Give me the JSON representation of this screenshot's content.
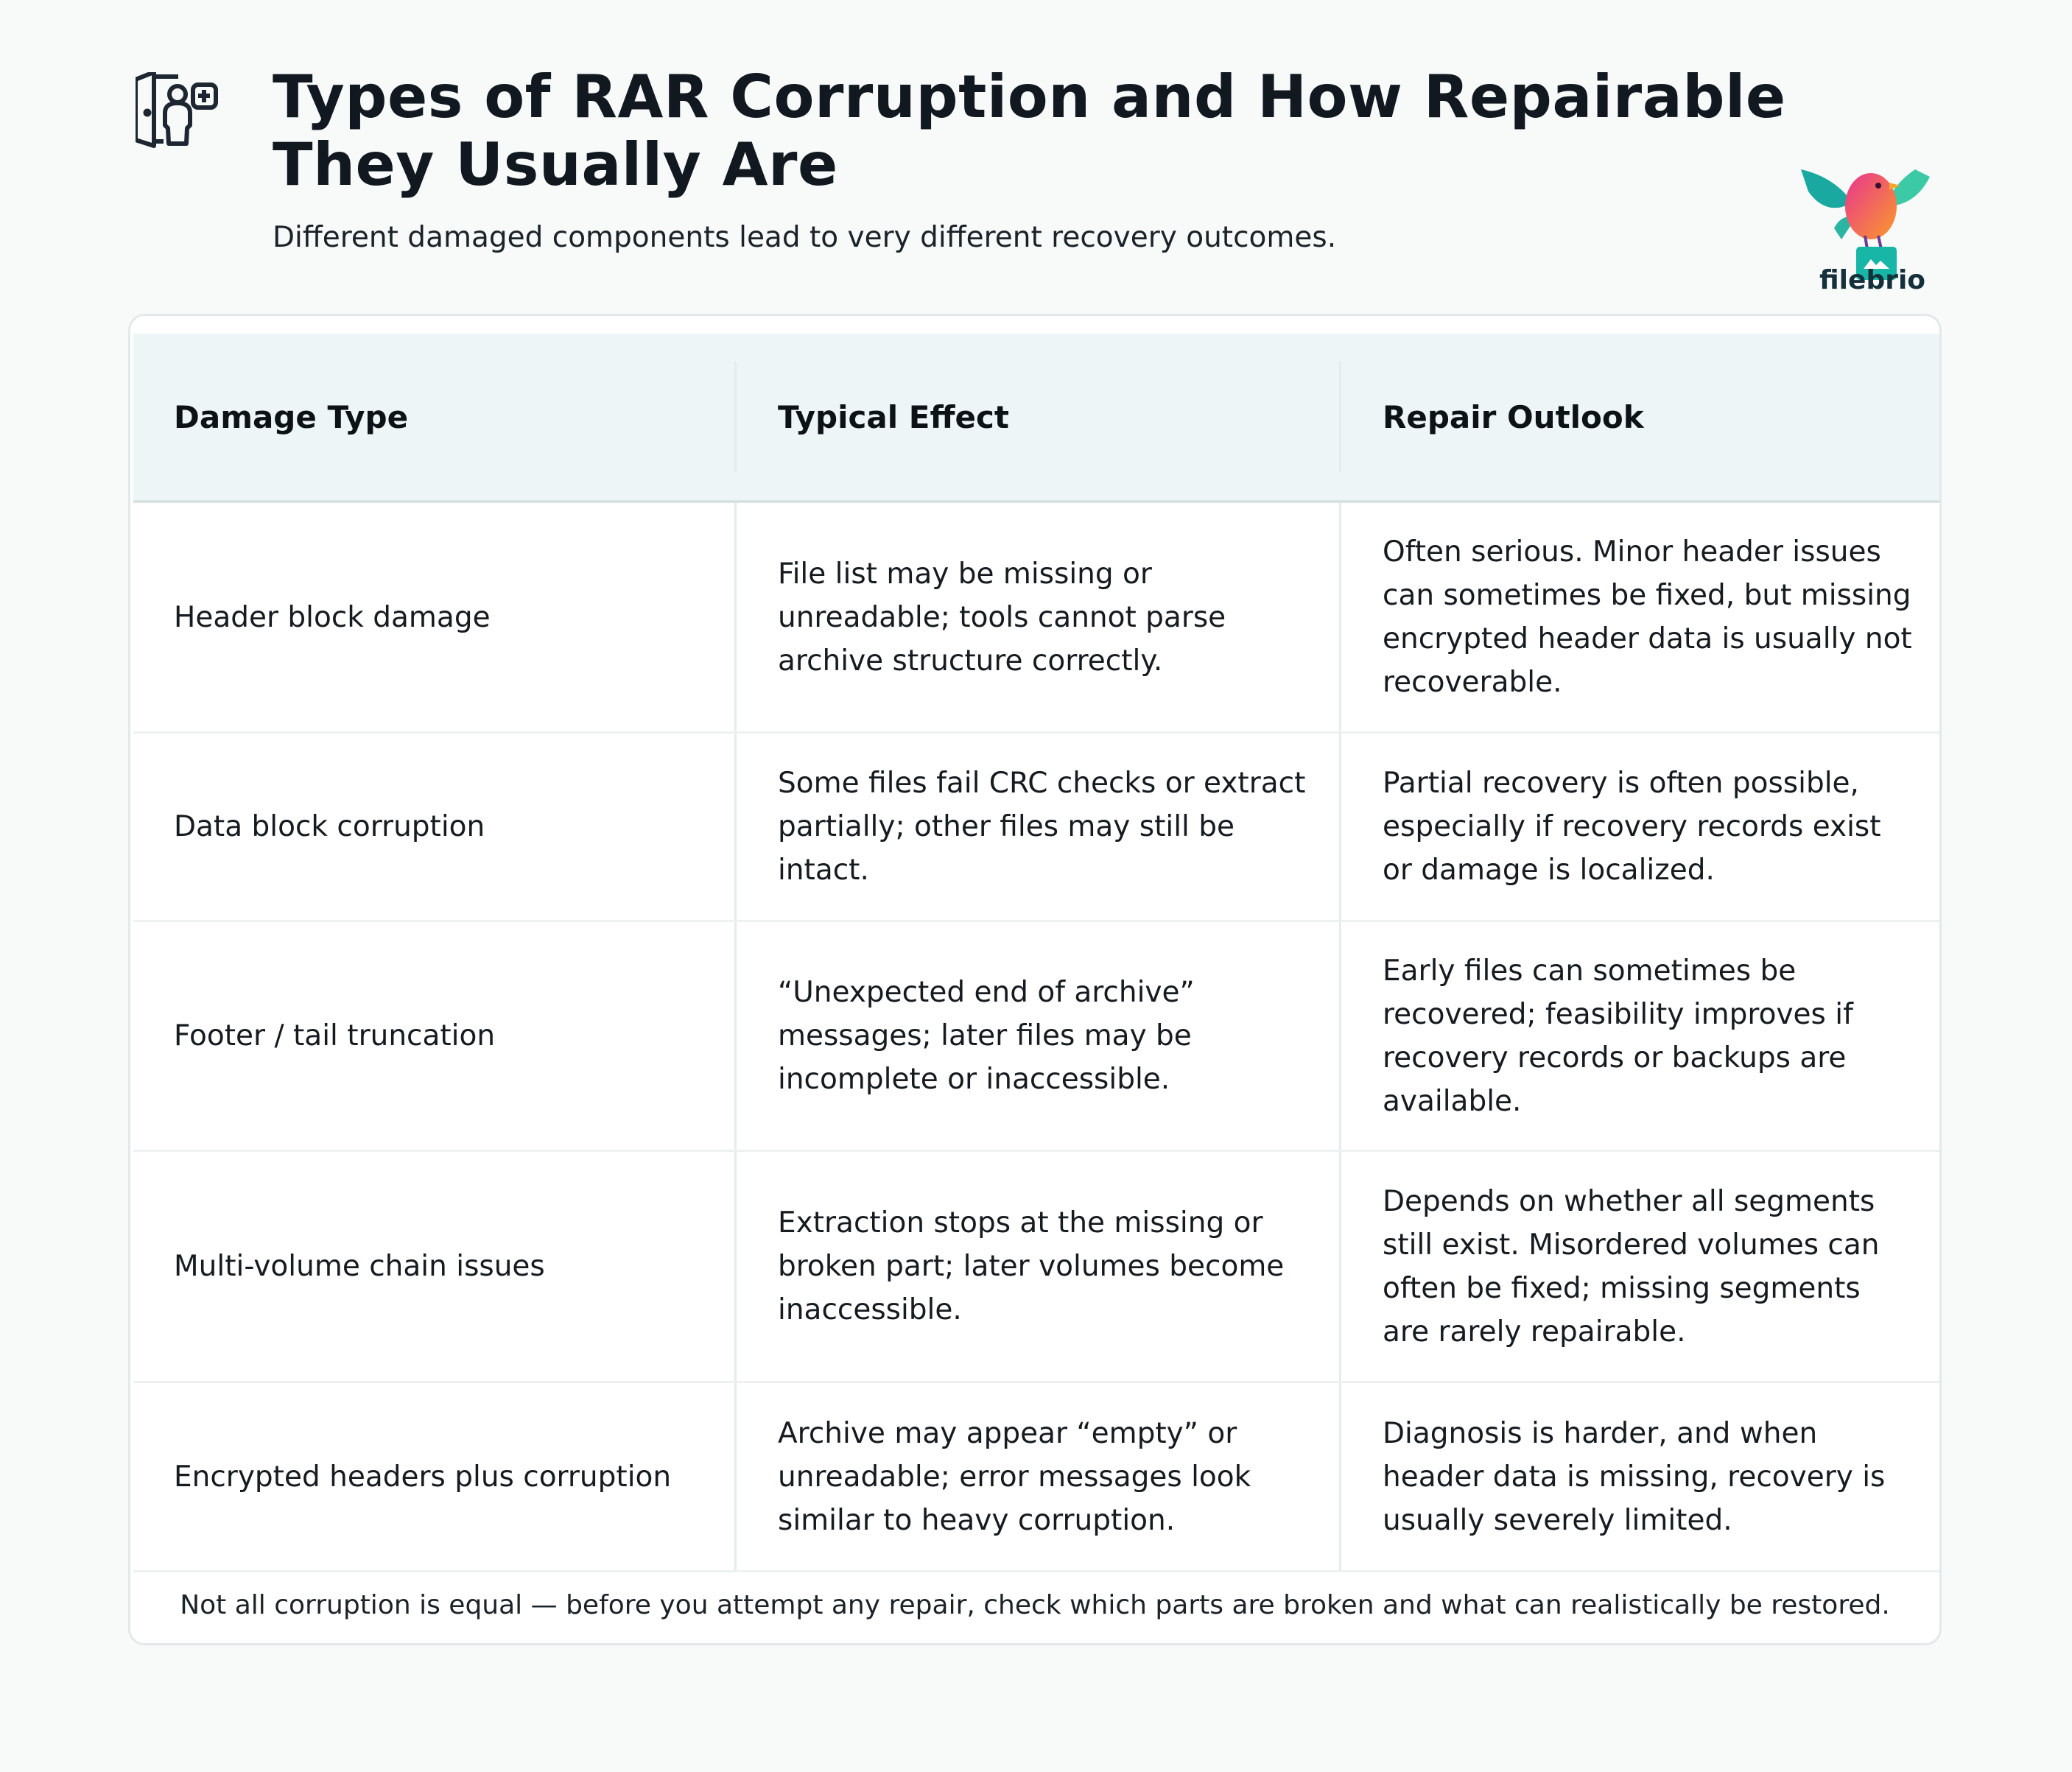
{
  "header": {
    "icon": "door-person-plus-icon",
    "title": "Types of RAR Corruption and How Repairable They Usually Are",
    "subtitle": "Different damaged components lead to very different recovery outcomes."
  },
  "logo": {
    "text": "filebrio",
    "icon": "bird-on-file-logo"
  },
  "table": {
    "columns": [
      "Damage Type",
      "Typical Effect",
      "Repair Outlook"
    ],
    "rows": [
      [
        "Header block damage",
        "File list may be missing or unreadable; tools cannot parse archive structure correctly.",
        "Often serious. Minor header issues can sometimes be fixed, but missing encrypted header data is usually not recoverable."
      ],
      [
        "Data block corruption",
        "Some files fail CRC checks or extract partially; other files may still be intact.",
        "Partial recovery is often possible, especially if recovery records exist or damage is localized."
      ],
      [
        "Footer / tail truncation",
        "“Unexpected end of archive” messages; later files may be incomplete or inaccessible.",
        "Early files can sometimes be recovered; feasibility improves if recovery records or backups are available."
      ],
      [
        "Multi-volume chain issues",
        "Extraction stops at the missing or broken part; later volumes become inaccessible.",
        "Depends on whether all segments still exist. Misordered volumes can often be fixed; missing segments are rarely repairable."
      ],
      [
        "Encrypted headers plus corruption",
        "Archive may appear “empty” or unreadable; error messages look similar to heavy corruption.",
        "Diagnosis is harder, and when header data is missing, recovery is usually severely limited."
      ]
    ],
    "footer_note": "Not all corruption is equal — before you attempt any repair, check which parts are broken and what can realistically be restored."
  },
  "colors": {
    "header_bg": "#edf5f7",
    "text": "#14181c",
    "background": "#f8fafa"
  }
}
